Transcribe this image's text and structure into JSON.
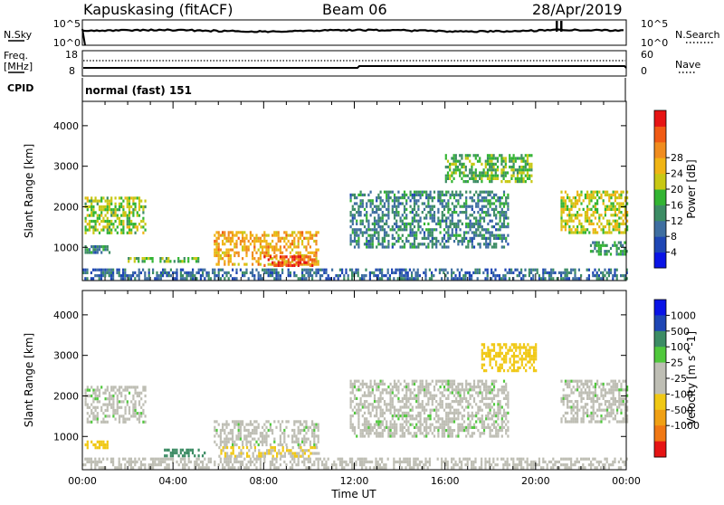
{
  "header": {
    "station": "Kapuskasing (fitACF)",
    "beam": "Beam 06",
    "date": "28/Apr/2019"
  },
  "sky_panel": {
    "left_label": "N.Sky",
    "right_label": "N.Search",
    "left_ticks": [
      "10^5",
      "10^0"
    ],
    "right_ticks": [
      "10^5",
      "10^0"
    ]
  },
  "freq_panel": {
    "left_label_1": "Freq.",
    "left_label_2": "[MHz]",
    "right_label": "Nave",
    "left_ticks": [
      "18",
      "8"
    ],
    "right_ticks": [
      "60",
      "0"
    ]
  },
  "cpid": {
    "label": "CPID",
    "value": "normal (fast) 151"
  },
  "chart_data": [
    {
      "type": "heatmap",
      "title": "",
      "ylabel": "Slant Range [km]",
      "xlabel": "",
      "x_range_hours": [
        0,
        24
      ],
      "ylim": [
        180,
        4600
      ],
      "yticks": [
        "1000",
        "2000",
        "3000",
        "4000"
      ],
      "colorbar": {
        "label": "Power [dB]",
        "ticks": [
          "4",
          "8",
          "12",
          "16",
          "20",
          "24",
          "28"
        ],
        "colors": [
          "#0a14e6",
          "#1e46b4",
          "#3e6ea0",
          "#3c8c64",
          "#32b432",
          "#c8c814",
          "#f0b414",
          "#f08c1e",
          "#f05a14",
          "#e61414"
        ]
      },
      "regions": [
        {
          "t0": 0.1,
          "t1": 2.8,
          "r0": 1350,
          "r1": 2250,
          "value": 16
        },
        {
          "t0": 0.1,
          "t1": 1.2,
          "r0": 850,
          "r1": 1050,
          "value": 10
        },
        {
          "t0": 2.0,
          "t1": 5.2,
          "r0": 620,
          "r1": 760,
          "value": 14
        },
        {
          "t0": 5.8,
          "t1": 10.4,
          "r0": 560,
          "r1": 1400,
          "value": 22
        },
        {
          "t0": 8.0,
          "t1": 10.2,
          "r0": 560,
          "r1": 800,
          "value": 28
        },
        {
          "t0": 11.8,
          "t1": 18.8,
          "r0": 1000,
          "r1": 2400,
          "value": 10
        },
        {
          "t0": 16.0,
          "t1": 19.8,
          "r0": 2600,
          "r1": 3300,
          "value": 14
        },
        {
          "t0": 21.1,
          "t1": 24.0,
          "r0": 1350,
          "r1": 2400,
          "value": 18
        },
        {
          "t0": 22.4,
          "t1": 24.0,
          "r0": 800,
          "r1": 1150,
          "value": 12
        },
        {
          "t0": 0.0,
          "t1": 24.0,
          "r0": 200,
          "r1": 480,
          "value": 8
        }
      ]
    },
    {
      "type": "heatmap",
      "title": "",
      "ylabel": "Slant Range [km]",
      "xlabel": "Time UT",
      "x_range_hours": [
        0,
        24
      ],
      "xticks": [
        "00:00",
        "04:00",
        "08:00",
        "12:00",
        "16:00",
        "20:00",
        "00:00"
      ],
      "ylim": [
        180,
        4600
      ],
      "yticks": [
        "1000",
        "2000",
        "3000",
        "4000"
      ],
      "colorbar": {
        "label": "Velocity [m s^-1]",
        "ticks": [
          "1000",
          "500",
          "100",
          "25",
          "-25",
          "-100",
          "-500",
          "-1000"
        ],
        "colors": [
          "#0a14e6",
          "#1e46b4",
          "#3c8c64",
          "#50c83c",
          "#bebeb4",
          "#bebeb4",
          "#f0c814",
          "#f0a014",
          "#f07814",
          "#e61414"
        ]
      },
      "regions": [
        {
          "t0": 0.1,
          "t1": 2.8,
          "r0": 1350,
          "r1": 2250,
          "value": 0
        },
        {
          "t0": 0.1,
          "t1": 1.2,
          "r0": 700,
          "r1": 900,
          "value": -200
        },
        {
          "t0": 3.6,
          "t1": 5.4,
          "r0": 520,
          "r1": 700,
          "value": 200
        },
        {
          "t0": 6.0,
          "t1": 10.4,
          "r0": 480,
          "r1": 760,
          "value": -100
        },
        {
          "t0": 5.8,
          "t1": 10.4,
          "r0": 760,
          "r1": 1400,
          "value": 0
        },
        {
          "t0": 11.8,
          "t1": 18.8,
          "r0": 1000,
          "r1": 2400,
          "value": 0
        },
        {
          "t0": 17.6,
          "t1": 20.0,
          "r0": 2600,
          "r1": 3300,
          "value": -400
        },
        {
          "t0": 21.1,
          "t1": 24.0,
          "r0": 1350,
          "r1": 2400,
          "value": 0
        },
        {
          "t0": 0.0,
          "t1": 24.0,
          "r0": 200,
          "r1": 480,
          "value": -20
        }
      ]
    }
  ]
}
